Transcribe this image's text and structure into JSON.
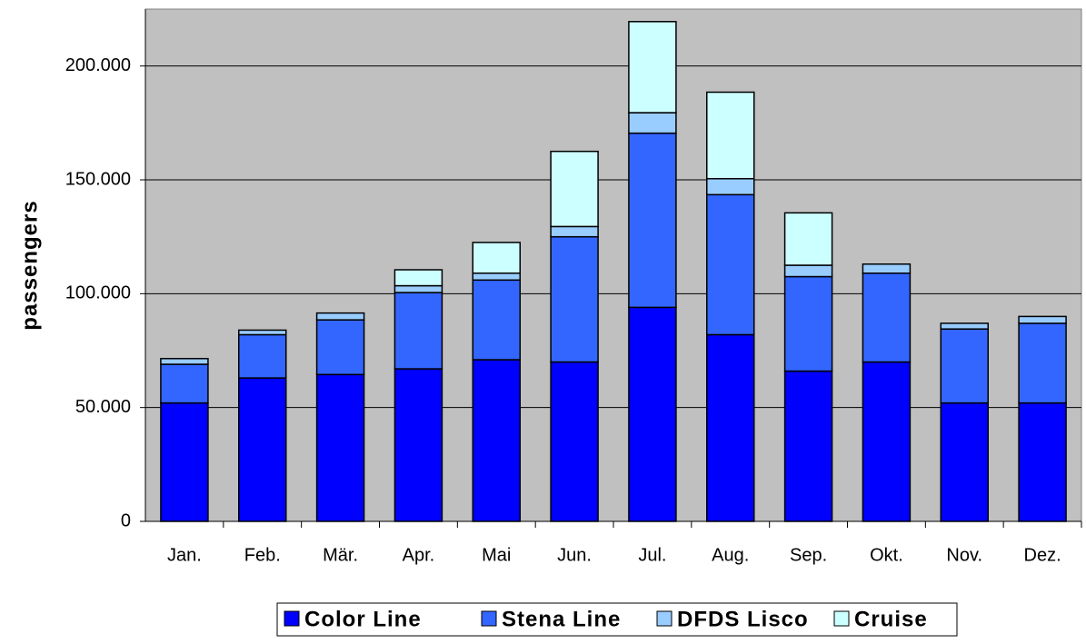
{
  "chart_data": {
    "type": "stacked_bar",
    "y_label": "passengers",
    "categories": [
      "Jan.",
      "Feb.",
      "Mär.",
      "Apr.",
      "Mai",
      "Jun.",
      "Jul.",
      "Aug.",
      "Sep.",
      "Okt.",
      "Nov.",
      "Dez."
    ],
    "series": [
      {
        "name": "Color Line",
        "color": "#0000ff",
        "values": [
          52000,
          63000,
          64500,
          67000,
          71000,
          70000,
          94000,
          82000,
          66000,
          70000,
          52000,
          52000
        ]
      },
      {
        "name": "Stena Line",
        "color": "#3366ff",
        "values": [
          17000,
          19000,
          24000,
          33500,
          35000,
          55000,
          76500,
          61500,
          41500,
          39000,
          32500,
          35000
        ]
      },
      {
        "name": "DFDS Lisco",
        "color": "#99ccff",
        "values": [
          2500,
          2000,
          3000,
          3000,
          3000,
          4500,
          9000,
          7000,
          5000,
          4000,
          2500,
          3000
        ]
      },
      {
        "name": "Cruise",
        "color": "#ccffff",
        "values": [
          null,
          null,
          null,
          7000,
          13500,
          33000,
          40000,
          38000,
          23000,
          null,
          null,
          null
        ]
      }
    ],
    "ylim": [
      0,
      225000
    ],
    "yticks": [
      0,
      {
        "value": 50000,
        "label": "50.000"
      },
      {
        "value": 100000,
        "label": "100.000"
      },
      {
        "value": 150000,
        "label": "150.000"
      },
      {
        "value": 200000,
        "label": "200.000"
      }
    ],
    "grid": true,
    "legend": "bottom"
  }
}
